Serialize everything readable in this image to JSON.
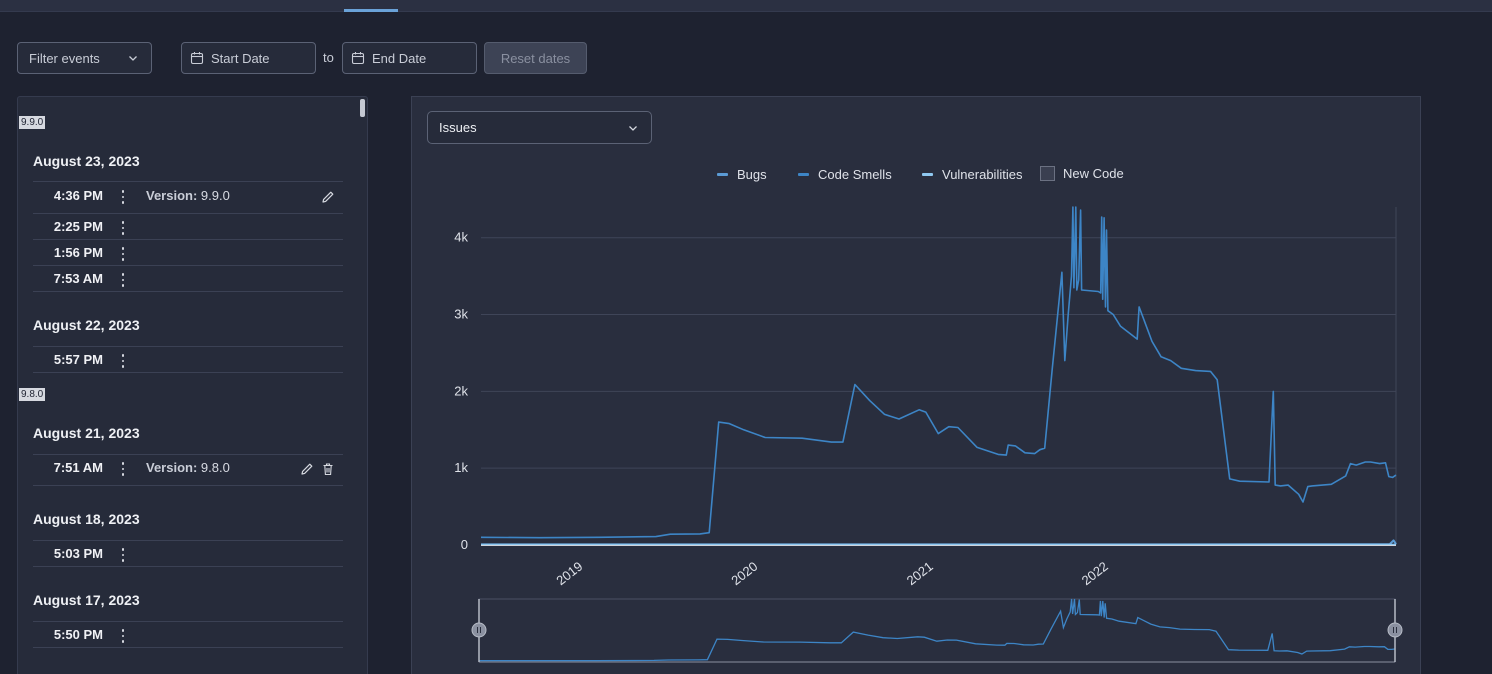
{
  "filter": {
    "label": "Filter events"
  },
  "date_range": {
    "start_placeholder": "Start Date",
    "separator": "to",
    "end_placeholder": "End Date",
    "reset_label": "Reset dates"
  },
  "events": {
    "groups": [
      {
        "version_badge": "9.9.0",
        "date": "August 23, 2023",
        "items": [
          {
            "time": "4:36 PM",
            "version_label": "Version:",
            "version": "9.9.0",
            "actions": [
              "edit"
            ]
          },
          {
            "time": "2:25 PM"
          },
          {
            "time": "1:56 PM"
          },
          {
            "time": "7:53 AM"
          }
        ]
      },
      {
        "date": "August 22, 2023",
        "items": [
          {
            "time": "5:57 PM"
          }
        ]
      },
      {
        "version_badge": "9.8.0",
        "date": "August 21, 2023",
        "items": [
          {
            "time": "7:51 AM",
            "version_label": "Version:",
            "version": "9.8.0",
            "actions": [
              "edit",
              "delete"
            ]
          }
        ]
      },
      {
        "date": "August 18, 2023",
        "items": [
          {
            "time": "5:03 PM"
          }
        ]
      },
      {
        "date": "August 17, 2023",
        "items": [
          {
            "time": "5:50 PM"
          }
        ]
      }
    ]
  },
  "metric_select": {
    "value": "Issues"
  },
  "legend": {
    "bugs": "Bugs",
    "code_smells": "Code Smells",
    "vulnerabilities": "Vulnerabilities",
    "new_code": "New Code"
  },
  "colors": {
    "bugs": "#5b9bd5",
    "code_smells": "#3d85c6",
    "vulnerabilities": "#8fc8f0",
    "accent": "#6aa2d8"
  },
  "chart_data": {
    "type": "line",
    "title": "",
    "xlabel": "",
    "ylabel": "",
    "x_ticks": [
      "2019",
      "2020",
      "2021",
      "2022"
    ],
    "y_ticks": [
      "0",
      "1k",
      "2k",
      "3k",
      "4k"
    ],
    "ylim": [
      0,
      4400
    ],
    "xlim": [
      "2018-06-01",
      "2023-08-23"
    ],
    "grid": true,
    "series": [
      {
        "name": "Code Smells",
        "points": [
          [
            "2018-06-01",
            100
          ],
          [
            "2018-10-01",
            95
          ],
          [
            "2019-02-01",
            100
          ],
          [
            "2019-06-01",
            110
          ],
          [
            "2019-07-01",
            140
          ],
          [
            "2019-09-01",
            145
          ],
          [
            "2019-09-20",
            160
          ],
          [
            "2019-10-10",
            1600
          ],
          [
            "2019-11-01",
            1580
          ],
          [
            "2019-12-01",
            1500
          ],
          [
            "2020-01-15",
            1400
          ],
          [
            "2020-04-01",
            1390
          ],
          [
            "2020-06-01",
            1340
          ],
          [
            "2020-06-25",
            1340
          ],
          [
            "2020-07-20",
            2090
          ],
          [
            "2020-08-20",
            1880
          ],
          [
            "2020-09-20",
            1700
          ],
          [
            "2020-10-20",
            1640
          ],
          [
            "2020-12-01",
            1760
          ],
          [
            "2020-12-15",
            1730
          ],
          [
            "2021-01-10",
            1450
          ],
          [
            "2021-02-01",
            1540
          ],
          [
            "2021-02-20",
            1530
          ],
          [
            "2021-04-01",
            1270
          ],
          [
            "2021-05-15",
            1180
          ],
          [
            "2021-06-01",
            1170
          ],
          [
            "2021-06-05",
            1300
          ],
          [
            "2021-06-20",
            1290
          ],
          [
            "2021-07-10",
            1200
          ],
          [
            "2021-07-30",
            1190
          ],
          [
            "2021-08-10",
            1240
          ],
          [
            "2021-08-20",
            1260
          ],
          [
            "2021-09-05",
            2300
          ],
          [
            "2021-09-25",
            3550
          ],
          [
            "2021-10-01",
            2400
          ],
          [
            "2021-10-08",
            3000
          ],
          [
            "2021-10-15",
            3500
          ],
          [
            "2021-10-18",
            4400
          ],
          [
            "2021-10-20",
            3350
          ],
          [
            "2021-10-24",
            4400
          ],
          [
            "2021-10-26",
            3320
          ],
          [
            "2021-10-30",
            3450
          ],
          [
            "2021-11-03",
            4360
          ],
          [
            "2021-11-05",
            3320
          ],
          [
            "2021-12-10",
            3300
          ],
          [
            "2021-12-15",
            3280
          ],
          [
            "2021-12-17",
            4270
          ],
          [
            "2021-12-19",
            3200
          ],
          [
            "2021-12-22",
            4260
          ],
          [
            "2021-12-25",
            3100
          ],
          [
            "2021-12-27",
            4100
          ],
          [
            "2021-12-30",
            3050
          ],
          [
            "2022-01-10",
            3000
          ],
          [
            "2022-01-25",
            2850
          ],
          [
            "2022-03-01",
            2680
          ],
          [
            "2022-03-05",
            3100
          ],
          [
            "2022-04-01",
            2650
          ],
          [
            "2022-04-20",
            2450
          ],
          [
            "2022-05-10",
            2400
          ],
          [
            "2022-06-01",
            2300
          ],
          [
            "2022-07-01",
            2270
          ],
          [
            "2022-08-01",
            2260
          ],
          [
            "2022-08-15",
            2150
          ],
          [
            "2022-09-10",
            860
          ],
          [
            "2022-10-01",
            830
          ],
          [
            "2022-12-01",
            820
          ],
          [
            "2022-12-10",
            2000
          ],
          [
            "2022-12-14",
            780
          ],
          [
            "2022-12-25",
            770
          ],
          [
            "2023-01-10",
            780
          ],
          [
            "2023-02-01",
            660
          ],
          [
            "2023-02-10",
            560
          ],
          [
            "2023-02-20",
            760
          ],
          [
            "2023-03-01",
            770
          ],
          [
            "2023-04-10",
            790
          ],
          [
            "2023-05-10",
            900
          ],
          [
            "2023-05-20",
            1060
          ],
          [
            "2023-06-01",
            1040
          ],
          [
            "2023-06-20",
            1080
          ],
          [
            "2023-07-01",
            1080
          ],
          [
            "2023-07-20",
            1060
          ],
          [
            "2023-08-01",
            1070
          ],
          [
            "2023-08-08",
            890
          ],
          [
            "2023-08-16",
            880
          ],
          [
            "2023-08-23",
            910
          ]
        ]
      },
      {
        "name": "Bugs",
        "points": [
          [
            "2018-06-01",
            8
          ],
          [
            "2020-06-01",
            8
          ],
          [
            "2022-06-01",
            8
          ],
          [
            "2023-08-10",
            12
          ],
          [
            "2023-08-18",
            60
          ],
          [
            "2023-08-23",
            10
          ]
        ]
      },
      {
        "name": "Vulnerabilities",
        "points": [
          [
            "2018-06-01",
            2
          ],
          [
            "2023-08-23",
            2
          ]
        ]
      }
    ]
  }
}
